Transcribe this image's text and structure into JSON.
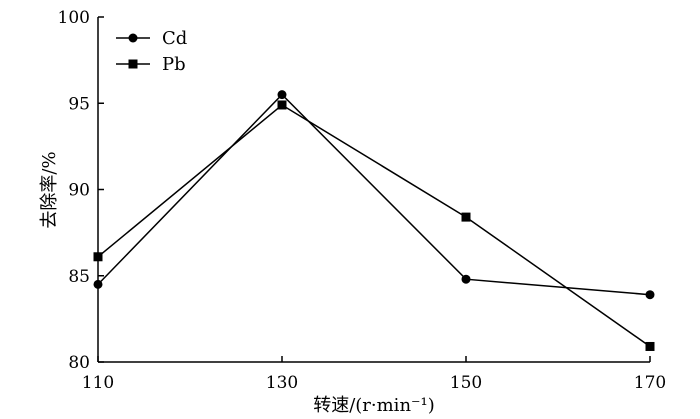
{
  "chart_data": {
    "type": "line",
    "xlabel": "转速/(r·min⁻¹)",
    "ylabel": "去除率/%",
    "x": [
      110,
      130,
      150,
      170
    ],
    "xlim": [
      110,
      170
    ],
    "ylim": [
      80,
      100
    ],
    "xticks": [
      "110",
      "130",
      "150",
      "170"
    ],
    "yticks": [
      "80",
      "85",
      "90",
      "95",
      "100"
    ],
    "grid": false,
    "legend_position": "top-left",
    "series": [
      {
        "name": "Cd",
        "marker": "circle",
        "values": [
          84.5,
          95.5,
          84.8,
          83.9
        ]
      },
      {
        "name": "Pb",
        "marker": "square",
        "values": [
          86.1,
          94.9,
          88.4,
          80.9
        ]
      }
    ]
  }
}
